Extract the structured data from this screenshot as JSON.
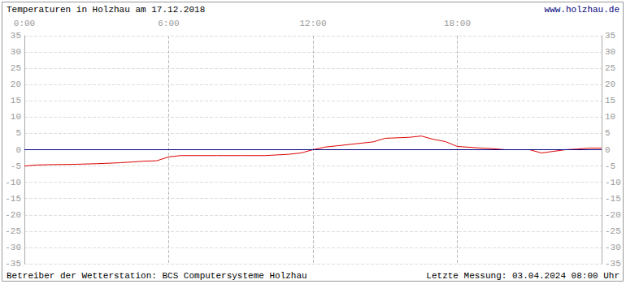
{
  "chart_data": {
    "type": "line",
    "title": "Temperaturen in Holzhau am 17.12.2018",
    "website": "www.holzhau.de",
    "footer_left": "Betreiber der Wetterstation: BCS Computersysteme Holzhau",
    "footer_right": "Letzte Messung: 03.04.2024 08:00 Uhr",
    "x": [
      0,
      0.5,
      1,
      2,
      3,
      4,
      5,
      5.5,
      6,
      6.5,
      7,
      8,
      9,
      10,
      11,
      11.5,
      12,
      12.5,
      13,
      14,
      14.5,
      15,
      16,
      16.5,
      17,
      17.5,
      18,
      19,
      19.5,
      20,
      21,
      21.5,
      22,
      22.5,
      23,
      23.5,
      24
    ],
    "values": [
      -5,
      -4.7,
      -4.6,
      -4.5,
      -4.3,
      -4.0,
      -3.5,
      -3.4,
      -2.2,
      -1.8,
      -1.8,
      -1.8,
      -1.8,
      -1.8,
      -1.4,
      -1.0,
      0,
      0.8,
      1.2,
      2.0,
      2.4,
      3.5,
      3.8,
      4.2,
      3.2,
      2.5,
      1.0,
      0.5,
      0.3,
      0,
      0,
      -1.0,
      -0.5,
      0,
      0.2,
      0.5,
      0.5
    ],
    "color": "#dd0000",
    "zero_line": {
      "value": 0,
      "color": "#000080"
    },
    "xlim": [
      0,
      24
    ],
    "xticks": [
      {
        "value": 0,
        "label": "0:00"
      },
      {
        "value": 6,
        "label": "6:00"
      },
      {
        "value": 12,
        "label": "12:00"
      },
      {
        "value": 18,
        "label": "18:00"
      }
    ],
    "ylim": [
      -35,
      35
    ],
    "yticks": [
      -35,
      -30,
      -25,
      -20,
      -15,
      -10,
      -5,
      0,
      5,
      10,
      15,
      20,
      25,
      30,
      35
    ],
    "grid": true
  }
}
